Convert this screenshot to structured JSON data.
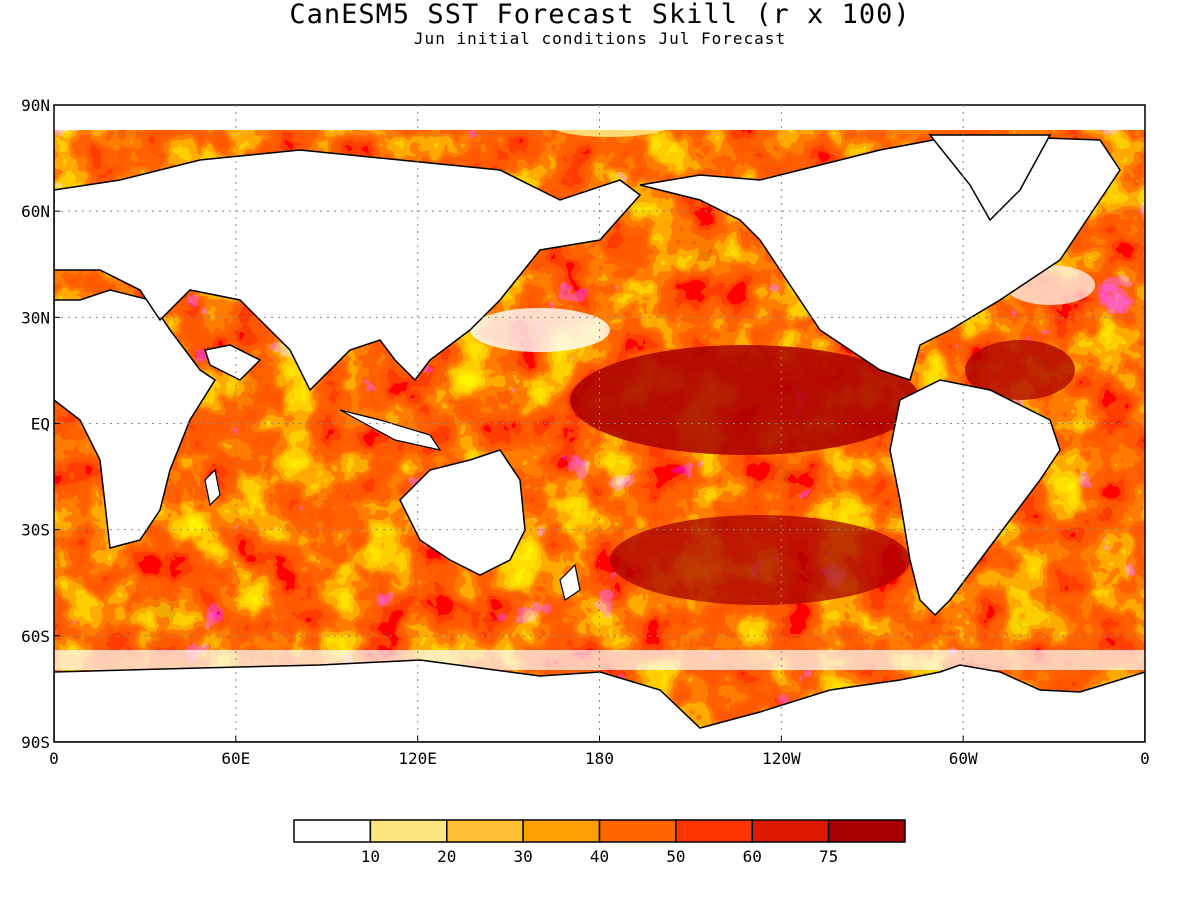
{
  "title": "CanESM5 SST Forecast Skill (r x 100)",
  "subtitle": "Jun initial conditions  Jul Forecast",
  "map": {
    "projection": "equirectangular",
    "lon_range": [
      0,
      360
    ],
    "lat_range": [
      -90,
      90
    ],
    "lon_ticks": [
      "0",
      "60E",
      "120E",
      "180",
      "120W",
      "60W",
      "0"
    ],
    "lat_ticks": [
      "90N",
      "60N",
      "30N",
      "EQ",
      "30S",
      "60S",
      "90S"
    ],
    "grid": "dotted"
  },
  "colorbar": {
    "colors": [
      "#ffffff",
      "#ffe680",
      "#ffbf33",
      "#ff9f00",
      "#ff6600",
      "#ff3300",
      "#dd1a00",
      "#a80000"
    ],
    "tick_labels": [
      "10",
      "20",
      "30",
      "40",
      "50",
      "60",
      "75"
    ]
  }
}
